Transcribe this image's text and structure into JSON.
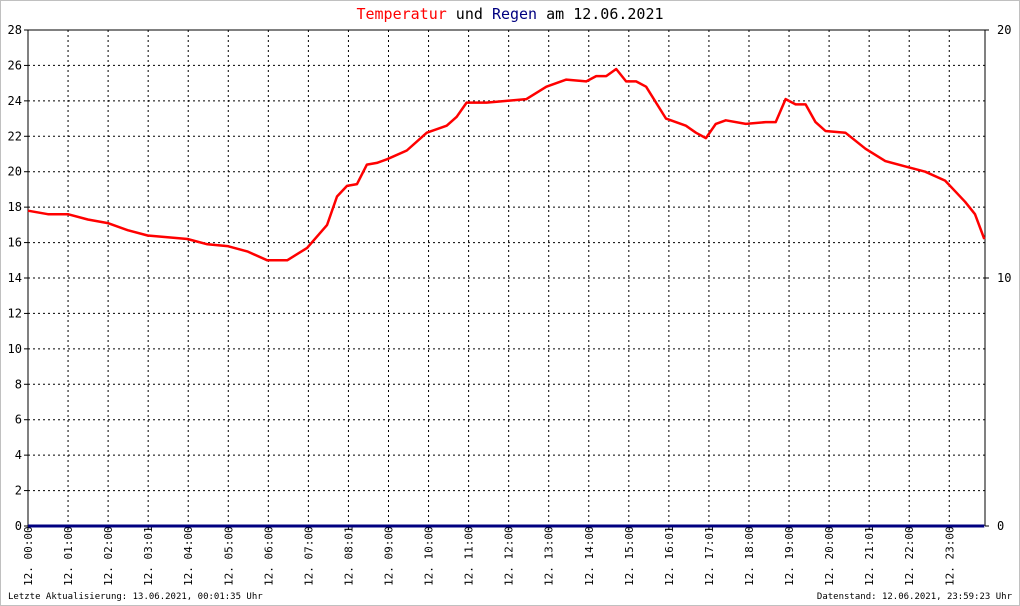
{
  "chart_data": {
    "type": "line",
    "title_parts": [
      {
        "text": "Temperatur",
        "color": "#ff0000"
      },
      {
        "text": " und ",
        "color": "#000000"
      },
      {
        "text": "Regen",
        "color": "#000080"
      },
      {
        "text": " am 12.06.2021",
        "color": "#000000"
      }
    ],
    "ylim_left": [
      0,
      28
    ],
    "ylim_right": [
      0,
      20
    ],
    "y_ticks_left": [
      "0",
      "2",
      "4",
      "6",
      "8",
      "10",
      "12",
      "14",
      "16",
      "18",
      "20",
      "22",
      "24",
      "26",
      "28"
    ],
    "y_ticks_right": [
      "0",
      "10",
      "20"
    ],
    "x_ticks": [
      "12. 00:00",
      "12. 01:00",
      "12. 02:00",
      "12. 03:01",
      "12. 04:00",
      "12. 05:00",
      "12. 06:00",
      "12. 07:00",
      "12. 08:01",
      "12. 09:00",
      "12. 10:00",
      "12. 11:00",
      "12. 12:00",
      "12. 13:00",
      "12. 14:00",
      "12. 15:00",
      "12. 16:01",
      "12. 17:01",
      "12. 18:00",
      "12. 19:00",
      "12. 20:00",
      "12. 21:01",
      "12. 22:00",
      "12. 23:00"
    ],
    "grid": true,
    "series": [
      {
        "name": "Temperatur",
        "axis": "left",
        "color": "#ff0000",
        "x": [
          "00:00",
          "00:30",
          "01:00",
          "01:30",
          "02:00",
          "02:30",
          "03:00",
          "03:30",
          "04:00",
          "04:30",
          "05:00",
          "05:30",
          "06:00",
          "06:30",
          "07:00",
          "07:30",
          "07:45",
          "08:00",
          "08:15",
          "08:30",
          "08:45",
          "09:00",
          "09:30",
          "10:00",
          "10:30",
          "10:45",
          "11:00",
          "11:30",
          "12:00",
          "12:30",
          "13:00",
          "13:30",
          "14:00",
          "14:15",
          "14:30",
          "14:45",
          "15:00",
          "15:15",
          "15:30",
          "16:00",
          "16:30",
          "16:45",
          "17:00",
          "17:15",
          "17:30",
          "18:00",
          "18:30",
          "18:45",
          "19:00",
          "19:15",
          "19:30",
          "19:45",
          "20:00",
          "20:30",
          "21:00",
          "21:30",
          "22:00",
          "22:30",
          "23:00",
          "23:15",
          "23:30",
          "23:45",
          "23:59"
        ],
        "values": [
          17.8,
          17.6,
          17.6,
          17.3,
          17.1,
          16.7,
          16.4,
          16.3,
          16.2,
          15.9,
          15.8,
          15.5,
          15.0,
          15.0,
          15.7,
          17.0,
          18.6,
          19.2,
          19.3,
          20.4,
          20.5,
          20.7,
          21.2,
          22.2,
          22.6,
          23.1,
          23.9,
          23.9,
          24.0,
          24.1,
          24.8,
          25.2,
          25.1,
          25.4,
          25.4,
          25.8,
          25.1,
          25.1,
          24.8,
          23.0,
          22.6,
          22.2,
          21.9,
          22.7,
          22.9,
          22.7,
          22.8,
          22.8,
          24.1,
          23.8,
          23.8,
          22.8,
          22.3,
          22.2,
          21.3,
          20.6,
          20.3,
          20.0,
          19.5,
          18.9,
          18.3,
          17.6,
          16.2
        ]
      },
      {
        "name": "Regen",
        "axis": "right",
        "color": "#000080",
        "x": [
          "00:00",
          "23:59"
        ],
        "values": [
          0,
          0
        ]
      }
    ]
  },
  "footer": {
    "left": "Letzte Aktualisierung: 13.06.2021, 00:01:35 Uhr",
    "right": "Datenstand: 12.06.2021, 23:59:23 Uhr"
  }
}
